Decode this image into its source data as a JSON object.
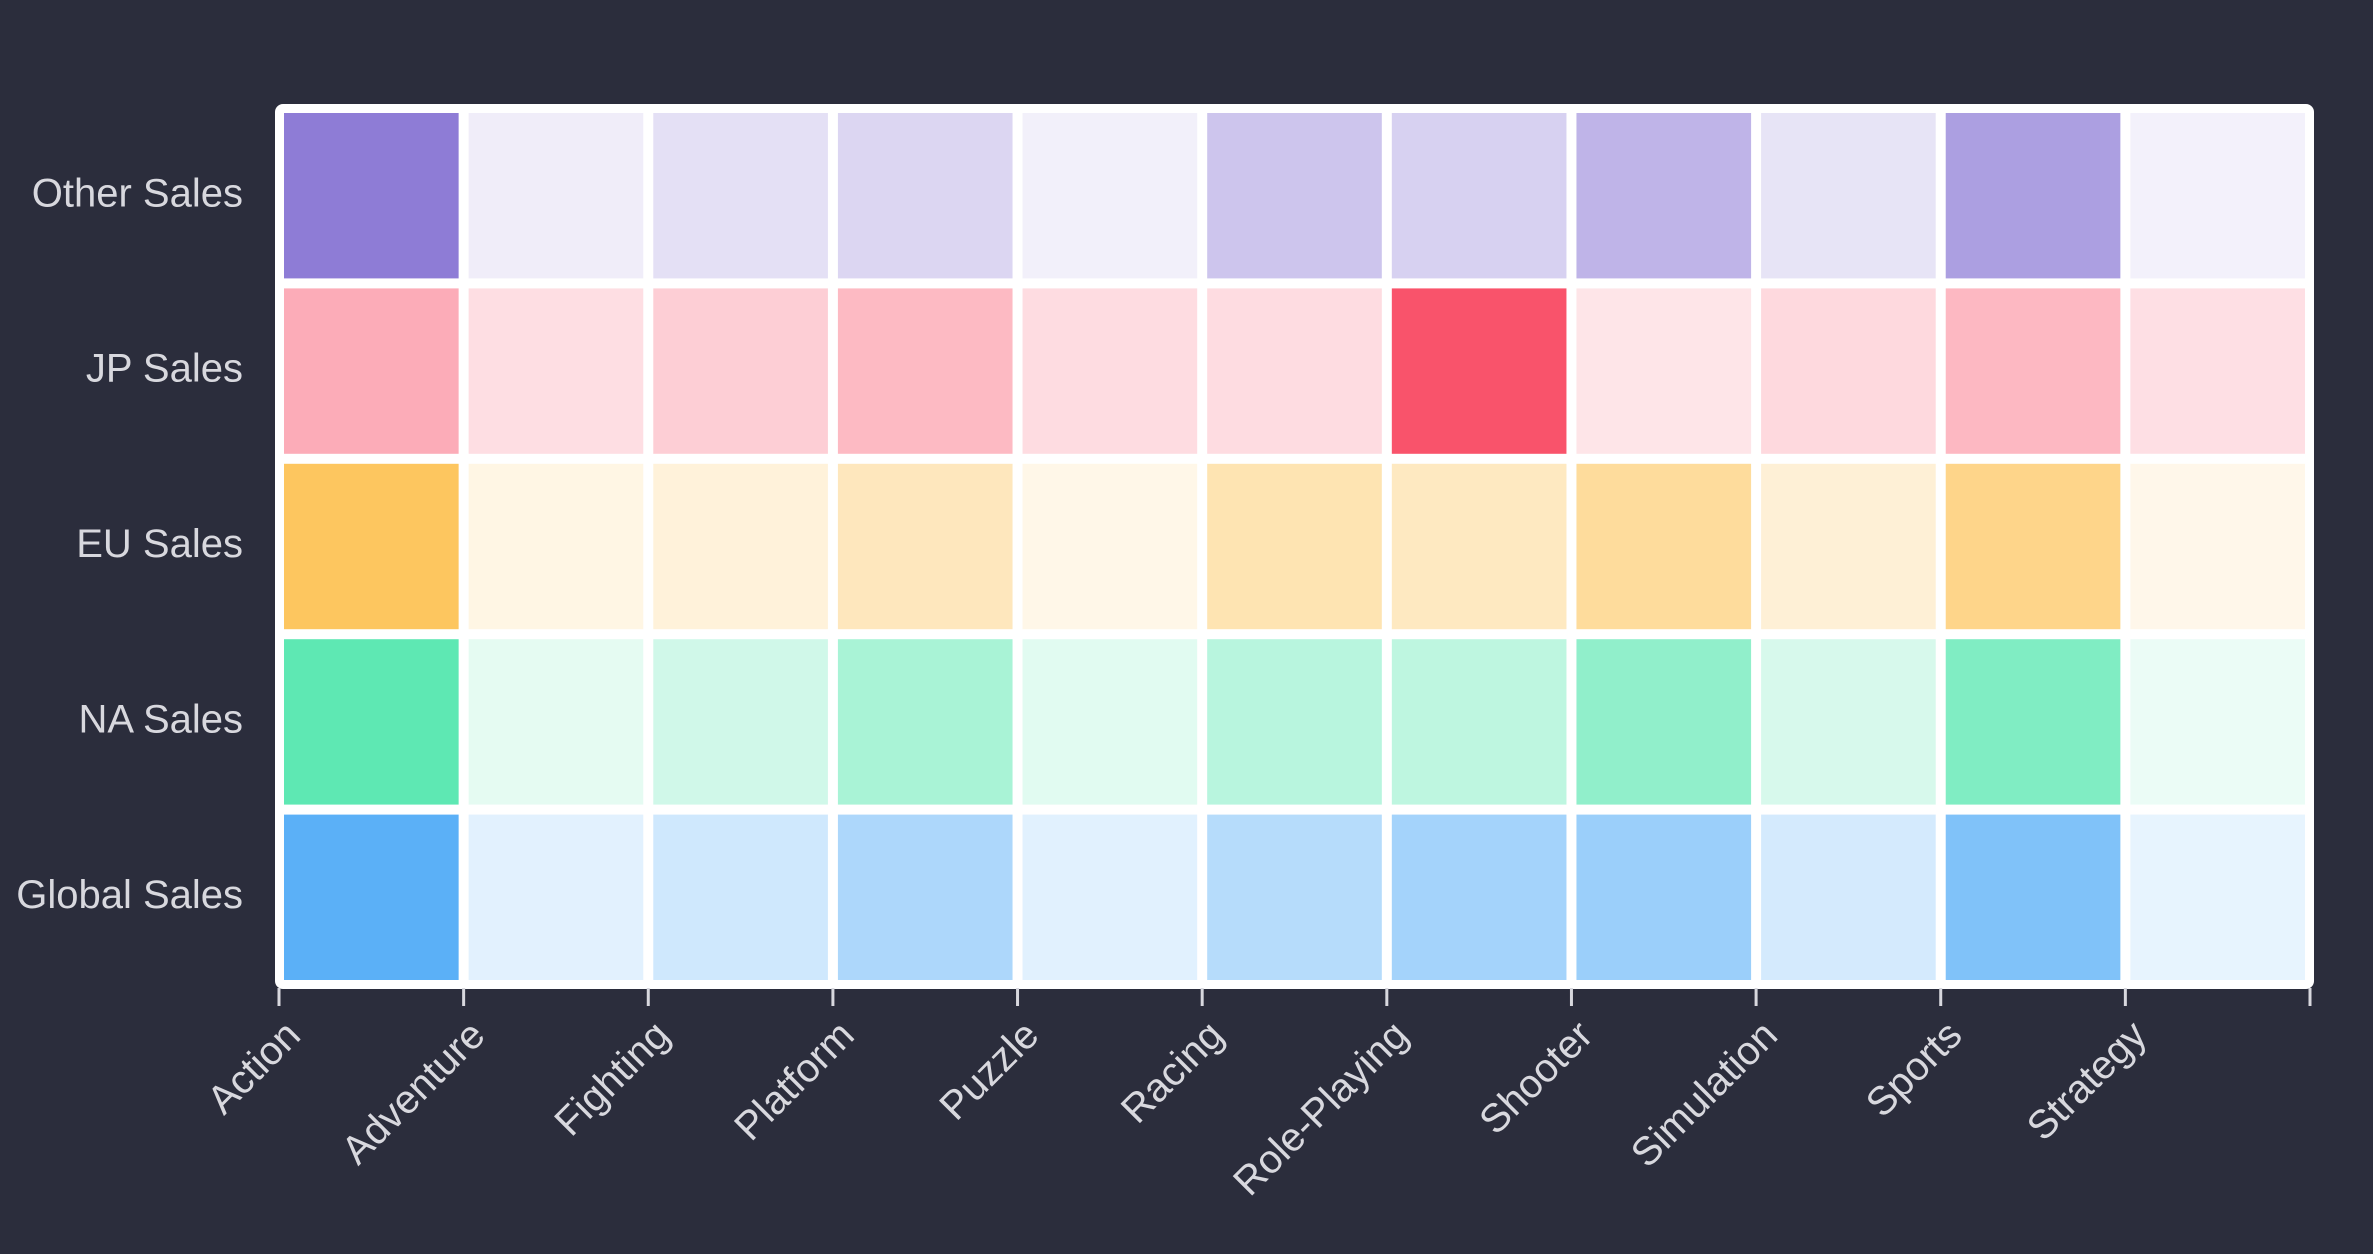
{
  "chart_data": {
    "type": "heatmap",
    "categories": [
      "Action",
      "Adventure",
      "Fighting",
      "Platform",
      "Puzzle",
      "Racing",
      "Role-Playing",
      "Shooter",
      "Simulation",
      "Sports",
      "Strategy"
    ],
    "series": [
      {
        "name": "Other Sales",
        "color": "#8e7cd6",
        "values": [
          187.38,
          16.81,
          36.68,
          51.59,
          12.55,
          77.27,
          59.61,
          102.69,
          31.52,
          134.97,
          11.36
        ]
      },
      {
        "name": "JP Sales",
        "color": "#f9536b",
        "values": [
          159.95,
          52.07,
          87.35,
          130.77,
          57.31,
          56.69,
          352.31,
          38.28,
          63.7,
          135.37,
          49.46
        ]
      },
      {
        "name": "EU Sales",
        "color": "#fdc65f",
        "values": [
          525.0,
          64.13,
          101.32,
          201.63,
          50.78,
          238.39,
          188.06,
          313.27,
          113.38,
          376.85,
          45.34
        ]
      },
      {
        "name": "NA Sales",
        "color": "#5ee8b3",
        "values": [
          877.83,
          105.8,
          223.59,
          447.05,
          123.78,
          359.42,
          327.28,
          582.6,
          183.31,
          683.35,
          68.7
        ]
      },
      {
        "name": "Global Sales",
        "color": "#5bb0f7",
        "values": [
          1751.18,
          239.04,
          448.91,
          831.37,
          244.95,
          732.04,
          927.37,
          1037.37,
          392.2,
          1330.93,
          175.12
        ]
      }
    ]
  }
}
